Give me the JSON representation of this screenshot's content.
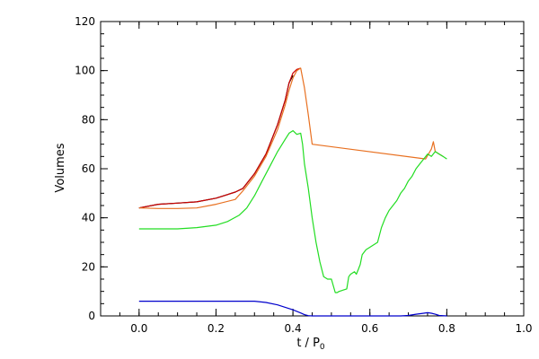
{
  "chart_data": {
    "type": "line",
    "title": "",
    "xlabel": "t / P",
    "xlabel_subscript": "0",
    "ylabel": "Volumes",
    "xlim": [
      -0.1,
      1.0
    ],
    "ylim": [
      0,
      120
    ],
    "xticks": [
      0.0,
      0.2,
      0.4,
      0.6,
      0.8,
      1.0
    ],
    "xtick_labels": [
      "0.0",
      "0.2",
      "0.4",
      "0.6",
      "0.8",
      "1.0"
    ],
    "yticks": [
      0,
      20,
      40,
      60,
      80,
      100,
      120
    ],
    "ytick_labels": [
      "0",
      "20",
      "40",
      "60",
      "80",
      "100",
      "120"
    ],
    "grid": false,
    "legend": "none",
    "series": [
      {
        "color": "#000000",
        "x": [
          0.0,
          0.05,
          0.1,
          0.15,
          0.2,
          0.25,
          0.27,
          0.3,
          0.33,
          0.36,
          0.38,
          0.39,
          0.4
        ],
        "y": [
          44,
          45.5,
          46,
          46.5,
          48,
          50.5,
          52,
          58,
          66,
          78,
          88,
          95,
          98
        ]
      },
      {
        "color": "#cc0000",
        "x": [
          0.0,
          0.05,
          0.1,
          0.15,
          0.2,
          0.25,
          0.27,
          0.3,
          0.33,
          0.36,
          0.38,
          0.39,
          0.4,
          0.41,
          0.42
        ],
        "y": [
          44,
          45.5,
          46,
          46.5,
          48,
          50.5,
          52,
          58,
          66,
          78,
          88,
          95,
          99,
          100.5,
          101
        ]
      },
      {
        "color": "#e87020",
        "x": [
          0.0,
          0.05,
          0.1,
          0.15,
          0.2,
          0.25,
          0.27,
          0.3,
          0.33,
          0.36,
          0.38,
          0.39,
          0.4,
          0.41,
          0.42,
          0.43,
          0.44,
          0.45,
          0.745,
          0.76,
          0.765,
          0.77,
          0.78,
          0.79
        ],
        "y": [
          44,
          43.8,
          43.8,
          44,
          45.5,
          47.5,
          51,
          57,
          65,
          76,
          86,
          92,
          97,
          100,
          101,
          93,
          82,
          70,
          64,
          68,
          71,
          67,
          66,
          65
        ]
      },
      {
        "color": "#22dd22",
        "x": [
          0.0,
          0.05,
          0.1,
          0.15,
          0.2,
          0.23,
          0.26,
          0.28,
          0.3,
          0.32,
          0.34,
          0.36,
          0.38,
          0.39,
          0.4,
          0.41,
          0.42,
          0.425,
          0.43,
          0.44,
          0.45,
          0.46,
          0.47,
          0.48,
          0.49,
          0.5,
          0.51,
          0.515,
          0.52,
          0.54,
          0.545,
          0.55,
          0.56,
          0.565,
          0.57,
          0.575,
          0.58,
          0.59,
          0.6,
          0.62,
          0.63,
          0.64,
          0.65,
          0.66,
          0.67,
          0.68,
          0.69,
          0.7,
          0.71,
          0.72,
          0.73,
          0.74,
          0.75,
          0.76,
          0.77,
          0.78,
          0.79,
          0.8
        ],
        "y": [
          35.5,
          35.5,
          35.5,
          36,
          37,
          38.5,
          41,
          44,
          49,
          55,
          61,
          67,
          72,
          74.5,
          75.5,
          74,
          74.5,
          70,
          62,
          52,
          40,
          30,
          22,
          16,
          15,
          15,
          9.5,
          9.5,
          10,
          11,
          16,
          17,
          18,
          17,
          19,
          21,
          25,
          27,
          28,
          30,
          36,
          40,
          43,
          45,
          47,
          50,
          52,
          55,
          57,
          60,
          62,
          64,
          66,
          65,
          67,
          66,
          65,
          64
        ]
      },
      {
        "color": "#0000cc",
        "x": [
          0.0,
          0.05,
          0.1,
          0.15,
          0.2,
          0.25,
          0.3,
          0.33,
          0.36,
          0.38,
          0.4,
          0.42,
          0.43,
          0.44,
          0.45,
          0.46,
          0.68,
          0.7,
          0.72,
          0.74,
          0.75,
          0.76,
          0.77,
          0.78,
          0.8
        ],
        "y": [
          6,
          6,
          6,
          6,
          6,
          6,
          6,
          5.5,
          4.5,
          3.5,
          2.5,
          1.2,
          0.5,
          0.1,
          0,
          0,
          0,
          0.2,
          0.7,
          1.1,
          1.3,
          1.1,
          0.7,
          0.2,
          0
        ]
      }
    ]
  }
}
